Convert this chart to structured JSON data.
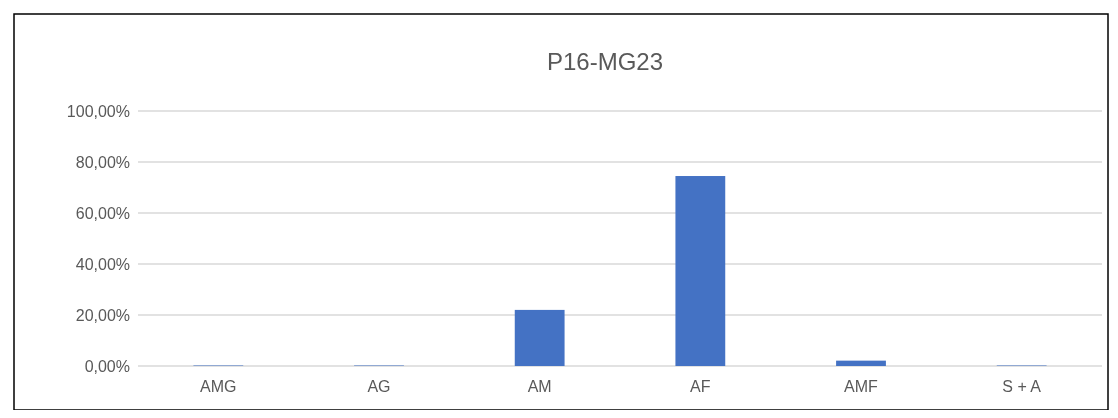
{
  "chart_data": {
    "type": "bar",
    "title": "P16-MG23",
    "categories": [
      "AMG",
      "AG",
      "AM",
      "AF",
      "AMF",
      "S + A"
    ],
    "values": [
      0.2,
      0.2,
      22.0,
      74.5,
      2.1,
      0.2
    ],
    "color": "#4472c4",
    "ylim": [
      0,
      100
    ],
    "yticks": [
      {
        "value": 0,
        "label": "0,00%"
      },
      {
        "value": 20,
        "label": "20,00%"
      },
      {
        "value": 40,
        "label": "40,00%"
      },
      {
        "value": 60,
        "label": "60,00%"
      },
      {
        "value": 80,
        "label": "80,00%"
      },
      {
        "value": 100,
        "label": "100,00%"
      }
    ],
    "grid": true
  }
}
